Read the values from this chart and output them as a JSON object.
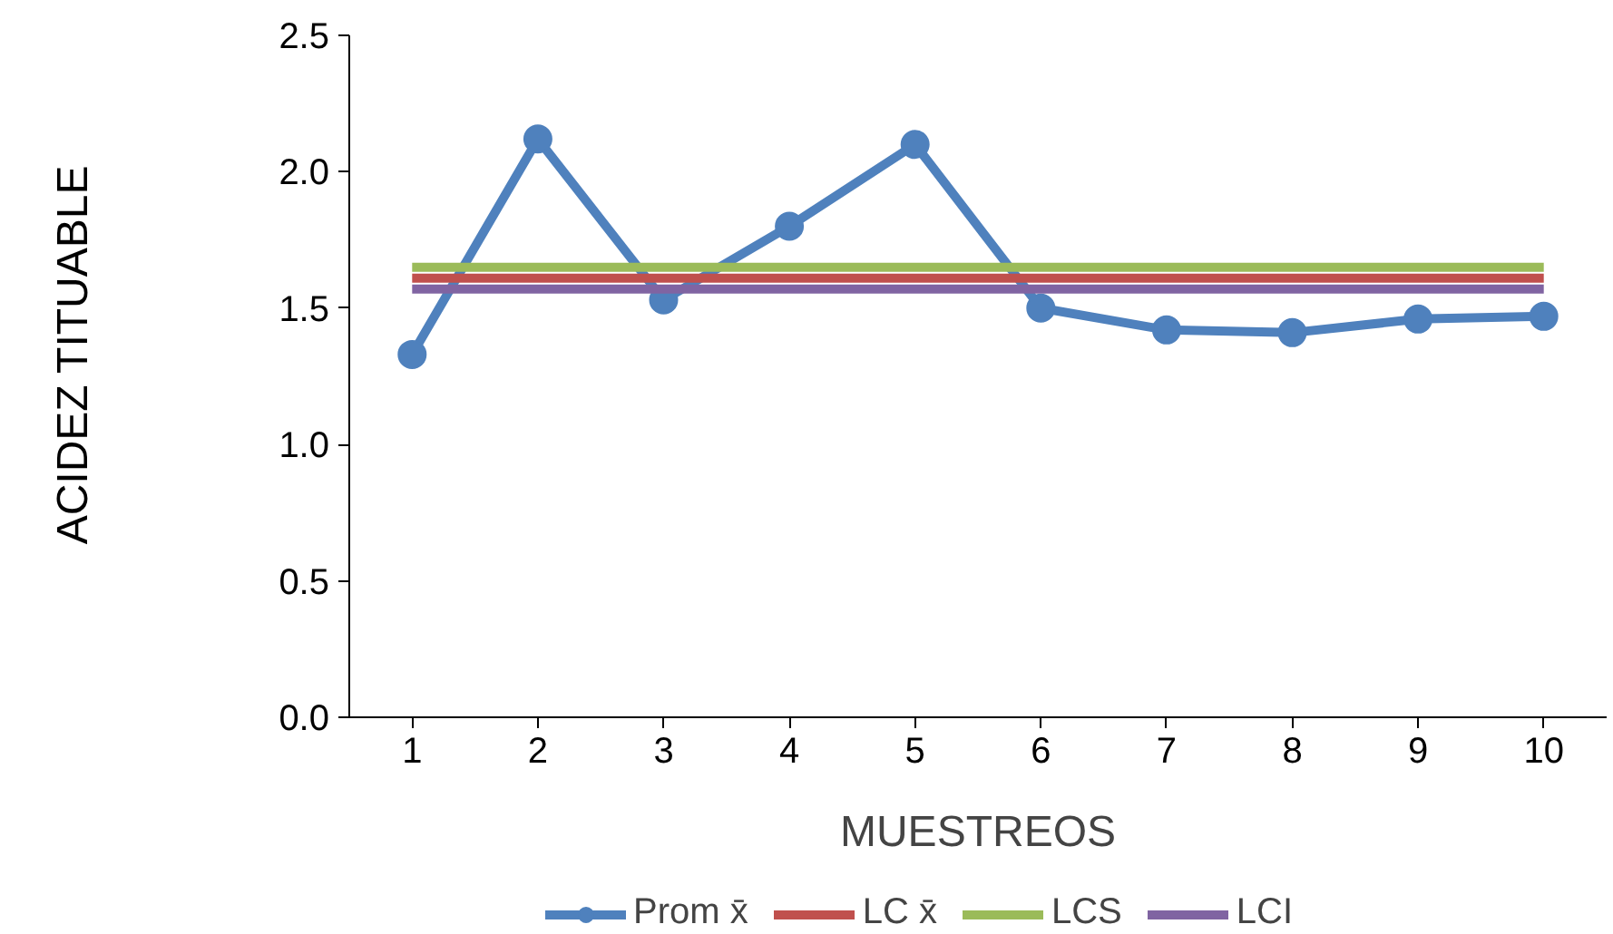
{
  "chart_data": {
    "type": "line",
    "xlabel": "MUESTREOS",
    "ylabel": "ACIDEZ TITUABLE",
    "categories": [
      "1",
      "2",
      "3",
      "4",
      "5",
      "6",
      "7",
      "8",
      "9",
      "10"
    ],
    "series": [
      {
        "name": "Prom x̄",
        "color": "#4f81bd",
        "marker": "circle",
        "values": [
          1.33,
          2.12,
          1.53,
          1.8,
          2.1,
          1.5,
          1.42,
          1.41,
          1.46,
          1.47
        ]
      },
      {
        "name": "LC x̄",
        "color": "#c0504d",
        "values": [
          1.61,
          1.61,
          1.61,
          1.61,
          1.61,
          1.61,
          1.61,
          1.61,
          1.61,
          1.61
        ]
      },
      {
        "name": "LCS",
        "color": "#9bbb59",
        "values": [
          1.65,
          1.65,
          1.65,
          1.65,
          1.65,
          1.65,
          1.65,
          1.65,
          1.65,
          1.65
        ]
      },
      {
        "name": "LCI",
        "color": "#8064a2",
        "values": [
          1.57,
          1.57,
          1.57,
          1.57,
          1.57,
          1.57,
          1.57,
          1.57,
          1.57,
          1.57
        ]
      }
    ],
    "ylim": [
      0,
      2.5
    ],
    "yticks": [
      {
        "value": 0,
        "label": "0.0"
      },
      {
        "value": 0.5,
        "label": "0.5"
      },
      {
        "value": 1,
        "label": "1.0"
      },
      {
        "value": 1.5,
        "label": "1.5"
      },
      {
        "value": 2,
        "label": "2.0"
      },
      {
        "value": 2.5,
        "label": "2.5"
      }
    ],
    "grid": false,
    "legend": "bottom"
  }
}
